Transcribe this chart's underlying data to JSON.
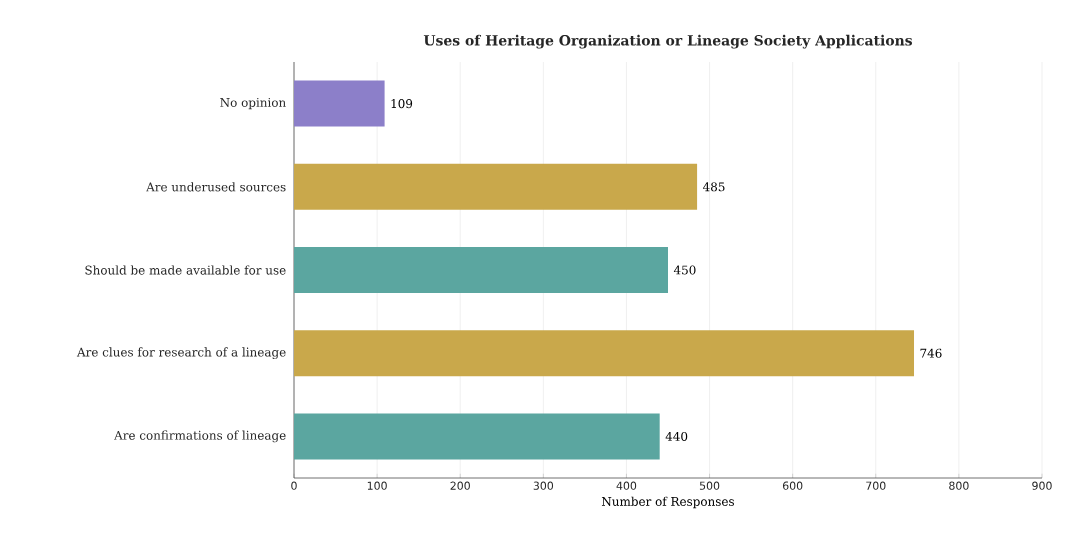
{
  "chart_data": {
    "type": "bar",
    "orientation": "horizontal",
    "title": "Uses of Heritage Organization or Lineage Society Applications",
    "xlabel": "Number of Responses",
    "categories": [
      "No opinion",
      "Are underused sources",
      "Should be made available for use",
      "Are clues for research of a lineage",
      "Are confirmations of lineage"
    ],
    "values": [
      109,
      485,
      450,
      746,
      440
    ],
    "colors": [
      "#8c7fc9",
      "#c9a84b",
      "#5ba6a0",
      "#c9a84b",
      "#5ba6a0"
    ],
    "xlim": [
      0,
      900
    ],
    "xticks": [
      0,
      100,
      200,
      300,
      400,
      500,
      600,
      700,
      800,
      900
    ],
    "grid": "x",
    "data_labels": true
  }
}
